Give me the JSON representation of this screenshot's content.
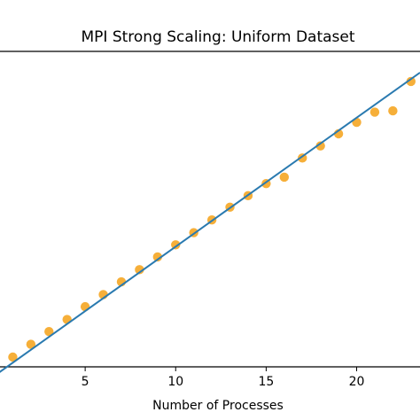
{
  "chart_data": {
    "type": "scatter",
    "title": "MPI Strong Scaling: Uniform Dataset",
    "xlabel": "Number of Processes",
    "ylabel": "",
    "xlim": [
      0,
      23.5
    ],
    "ylim": [
      0,
      23.5
    ],
    "x_ticks": [
      5,
      10,
      15,
      20
    ],
    "grid": false,
    "series": [
      {
        "kind": "scatter",
        "color": "#f5a623",
        "x": [
          1,
          2,
          3,
          4,
          5,
          6,
          7,
          8,
          9,
          10,
          11,
          12,
          13,
          14,
          15,
          16,
          17,
          18,
          19,
          20,
          21,
          22,
          23
        ],
        "y": [
          1.0,
          2.0,
          3.0,
          3.95,
          4.95,
          5.9,
          6.9,
          7.85,
          8.85,
          9.8,
          10.75,
          11.75,
          12.75,
          13.65,
          14.6,
          15.1,
          16.6,
          17.55,
          18.5,
          19.4,
          20.2,
          20.3,
          22.6
        ]
      },
      {
        "kind": "line",
        "color": "#2a7ab0",
        "x": [
          0,
          23.5
        ],
        "y": [
          0,
          23.5
        ]
      }
    ]
  }
}
